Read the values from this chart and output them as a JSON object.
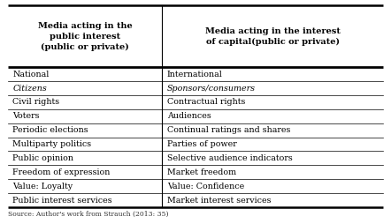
{
  "col1_header": "Media acting in the\npublic interest\n(public or private)",
  "col2_header": "Media acting in the interest\nof capital(public or private)",
  "rows": [
    [
      "National",
      "International"
    ],
    [
      "Citizens",
      "Sponsors/consumers"
    ],
    [
      "Civil rights",
      "Contractual rights"
    ],
    [
      "Voters",
      "Audiences"
    ],
    [
      "Periodic elections",
      "Continual ratings and shares"
    ],
    [
      "Multiparty politics",
      "Parties of power"
    ],
    [
      "Public opinion",
      "Selective audience indicators"
    ],
    [
      "Freedom of expression",
      "Market freedom"
    ],
    [
      "Value: Loyalty",
      "Value: Confidence"
    ],
    [
      "Public interest services",
      "Market interest services"
    ]
  ],
  "italic_row": 1,
  "source_text": "Source: Author's work from Strauch (2013: 35)",
  "bg_color": "#ffffff",
  "header_fontsize": 7.0,
  "row_fontsize": 6.8,
  "source_fontsize": 5.5,
  "col_split": 0.415
}
